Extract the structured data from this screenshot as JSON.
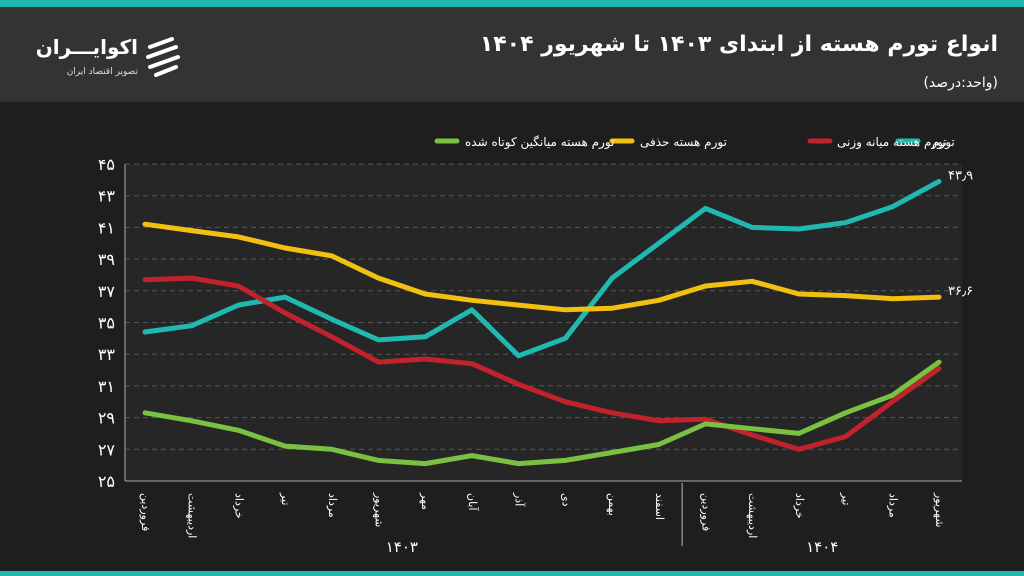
{
  "header": {
    "title": "انواع تورم هسته از ابتدای ۱۴۰۳ تا شهریور ۱۴۰۴",
    "unit": "(واحد:درصد)",
    "brand_name": "اکوایـــران",
    "brand_sub": "تصویر اقتصاد ایران"
  },
  "colors": {
    "background": "#1e1e1e",
    "header": "#333333",
    "accent": "#1fb7b0",
    "tavarom": "#20b9b1",
    "vazni": "#c2222b",
    "hazfi": "#f2c010",
    "kotah": "#7ac143"
  },
  "chart_data": {
    "type": "line",
    "ylim": [
      25,
      45
    ],
    "yticks": [
      "۲۵",
      "۲۷",
      "۲۹",
      "۳۱",
      "۳۳",
      "۳۵",
      "۳۷",
      "۳۹",
      "۴۱",
      "۴۳",
      "۴۵"
    ],
    "categories": [
      "فروردین",
      "اردیبهشت",
      "خرداد",
      "تیر",
      "مرداد",
      "شهریور",
      "مهر",
      "آبان",
      "آذر",
      "دی",
      "بهمن",
      "اسفند",
      "فروردین",
      "اردیبهشت",
      "خرداد",
      "تیر",
      "مرداد",
      "شهریور"
    ],
    "year_groups": [
      {
        "label": "۱۴۰۳",
        "count": 12
      },
      {
        "label": "۱۴۰۴",
        "count": 6
      }
    ],
    "series": [
      {
        "name": "تورم",
        "color": "#20b9b1",
        "values": [
          34.4,
          34.8,
          36.1,
          36.6,
          35.2,
          33.9,
          34.1,
          35.8,
          32.9,
          34.0,
          37.8,
          40.0,
          42.2,
          41.0,
          40.9,
          41.3,
          42.3,
          43.9
        ],
        "end_label": "۴۳٫۹"
      },
      {
        "name": "تورم هسته میانه وزنی",
        "color": "#c2222b",
        "values": [
          37.7,
          37.8,
          37.3,
          35.6,
          34.1,
          32.5,
          32.7,
          32.4,
          31.1,
          30.0,
          29.3,
          28.8,
          28.9,
          27.9,
          27.0,
          27.8,
          30.0,
          32.1
        ],
        "end_label": ""
      },
      {
        "name": "تورم هسته حذفی",
        "color": "#f2c010",
        "values": [
          41.2,
          40.8,
          40.4,
          39.7,
          39.2,
          37.8,
          36.8,
          36.4,
          36.1,
          35.8,
          35.9,
          36.4,
          37.3,
          37.6,
          36.8,
          36.7,
          36.5,
          36.6
        ],
        "end_label": "۳۶٫۶"
      },
      {
        "name": "تورم هسته میانگین کوتاه شده",
        "color": "#7ac143",
        "values": [
          29.3,
          28.8,
          28.2,
          27.2,
          27.0,
          26.3,
          26.1,
          26.6,
          26.1,
          26.3,
          26.8,
          27.3,
          28.6,
          28.3,
          28.0,
          29.3,
          30.4,
          32.5
        ],
        "end_label": ""
      }
    ],
    "grid": true,
    "legend_position": "top"
  }
}
